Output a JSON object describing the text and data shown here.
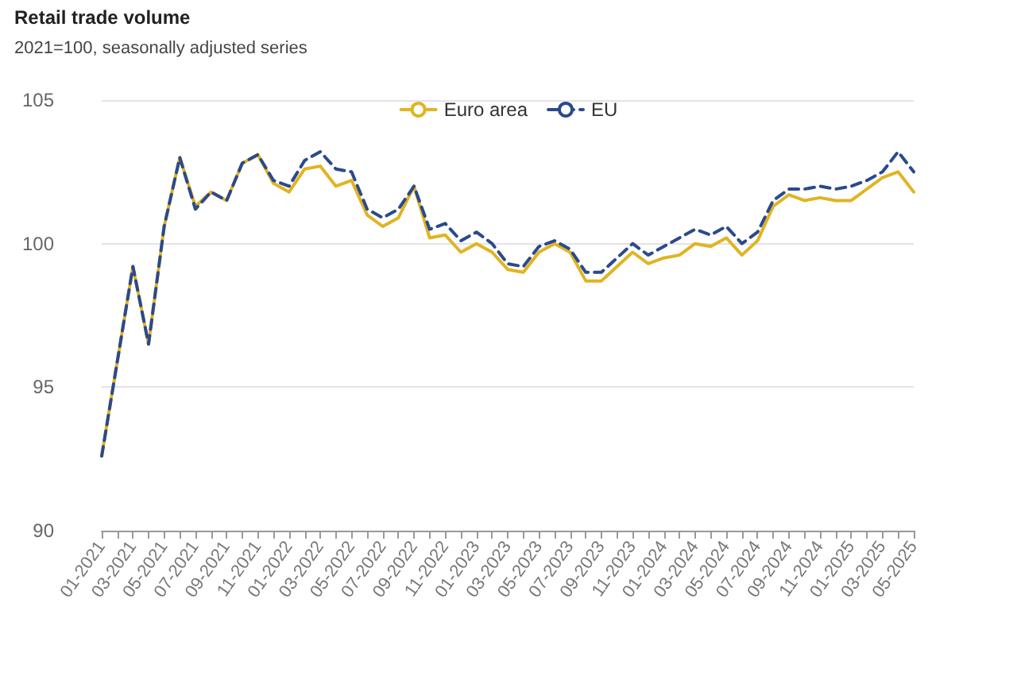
{
  "chart_data": {
    "type": "line",
    "title": "Retail trade volume",
    "subtitle": "2021=100, seasonally adjusted series",
    "categories": [
      "01-2021",
      null,
      "03-2021",
      null,
      "05-2021",
      null,
      "07-2021",
      null,
      "09-2021",
      null,
      "11-2021",
      null,
      "01-2022",
      null,
      "03-2022",
      null,
      "05-2022",
      null,
      "07-2022",
      null,
      "09-2022",
      null,
      "11-2022",
      null,
      "01-2023",
      null,
      "03-2023",
      null,
      "05-2023",
      null,
      "07-2023",
      null,
      "09-2023",
      null,
      "11-2023",
      null,
      "01-2024",
      null,
      "03-2024",
      null,
      "05-2024",
      null,
      "07-2024",
      null,
      "09-2024",
      null,
      "11-2024",
      null,
      "01-2025",
      null,
      "03-2025",
      null,
      "05-2025"
    ],
    "series": [
      {
        "name": "Euro area",
        "color": "#e0b422",
        "line_style": "solid",
        "values": [
          92.6,
          95.9,
          99.2,
          96.5,
          100.6,
          103.0,
          101.3,
          101.8,
          101.5,
          102.8,
          103.1,
          102.1,
          101.8,
          102.6,
          102.7,
          102.0,
          102.2,
          101.0,
          100.6,
          100.9,
          102.0,
          100.2,
          100.3,
          99.7,
          100.0,
          99.7,
          99.1,
          99.0,
          99.7,
          100.0,
          99.7,
          98.7,
          98.7,
          99.2,
          99.7,
          99.3,
          99.5,
          99.6,
          100.0,
          99.9,
          100.2,
          99.6,
          100.1,
          101.3,
          101.7,
          101.5,
          101.6,
          101.5,
          101.5,
          101.9,
          102.3,
          102.5,
          101.8
        ]
      },
      {
        "name": "EU",
        "color": "#2b4a8c",
        "line_style": "dashed",
        "values": [
          92.6,
          95.9,
          99.2,
          96.5,
          100.6,
          103.0,
          101.2,
          101.8,
          101.5,
          102.8,
          103.1,
          102.2,
          102.0,
          102.9,
          103.2,
          102.6,
          102.5,
          101.2,
          100.9,
          101.2,
          102.0,
          100.5,
          100.7,
          100.1,
          100.4,
          100.0,
          99.3,
          99.2,
          99.9,
          100.1,
          99.8,
          99.0,
          99.0,
          99.5,
          100.0,
          99.6,
          99.9,
          100.2,
          100.5,
          100.3,
          100.6,
          100.0,
          100.4,
          101.5,
          101.9,
          101.9,
          102.0,
          101.9,
          102.0,
          102.2,
          102.5,
          103.2,
          102.5
        ]
      }
    ],
    "ylim": [
      90,
      105
    ],
    "yticks": [
      90,
      95,
      100,
      105
    ],
    "grid": "y",
    "legend": "top",
    "marker": "none"
  }
}
